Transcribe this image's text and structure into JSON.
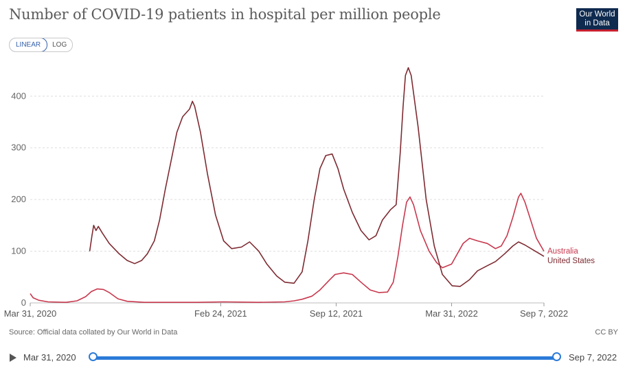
{
  "header": {
    "title": "Number of COVID-19 patients in hospital per million people",
    "logo_line1": "Our World",
    "logo_line2": "in Data",
    "logo_bg": "#0e2a4f",
    "logo_accent": "#c8202f"
  },
  "scale_toggle": {
    "linear_label": "LINEAR",
    "log_label": "LOG",
    "selected": "LINEAR"
  },
  "footer": {
    "source": "Source: Official data collated by Our World in Data",
    "license": "CC BY"
  },
  "timeline": {
    "start_label": "Mar 31, 2020",
    "end_label": "Sep 7, 2022",
    "play_icon": "play-icon",
    "accent": "#2b7bd8"
  },
  "chart_data": {
    "type": "line",
    "title": "Number of COVID-19 patients in hospital per million people",
    "x_type": "date",
    "xlim": [
      "2020-03-31",
      "2022-09-07"
    ],
    "ylim": [
      0,
      460
    ],
    "y_ticks": [
      0,
      100,
      200,
      300,
      400
    ],
    "x_ticks": [
      {
        "date": "2020-03-31",
        "label": "Mar 31, 2020"
      },
      {
        "date": "2021-02-24",
        "label": "Feb 24, 2021"
      },
      {
        "date": "2021-09-12",
        "label": "Sep 12, 2021"
      },
      {
        "date": "2022-03-31",
        "label": "Mar 31, 2022"
      },
      {
        "date": "2022-09-07",
        "label": "Sep 7, 2022"
      }
    ],
    "grid": "horizontal-dashed",
    "legend": "right-end-labels",
    "series": [
      {
        "name": "Australia",
        "color": "#c8374d",
        "points": [
          [
            "2020-03-31",
            18
          ],
          [
            "2020-04-05",
            10
          ],
          [
            "2020-04-15",
            5
          ],
          [
            "2020-05-01",
            2
          ],
          [
            "2020-06-01",
            1
          ],
          [
            "2020-06-20",
            4
          ],
          [
            "2020-07-05",
            12
          ],
          [
            "2020-07-15",
            22
          ],
          [
            "2020-07-25",
            27
          ],
          [
            "2020-08-05",
            26
          ],
          [
            "2020-08-15",
            20
          ],
          [
            "2020-08-30",
            8
          ],
          [
            "2020-09-15",
            3
          ],
          [
            "2020-10-15",
            1
          ],
          [
            "2021-01-15",
            1
          ],
          [
            "2021-03-01",
            2
          ],
          [
            "2021-05-01",
            1
          ],
          [
            "2021-06-15",
            2
          ],
          [
            "2021-07-01",
            4
          ],
          [
            "2021-07-15",
            7
          ],
          [
            "2021-08-01",
            13
          ],
          [
            "2021-08-15",
            25
          ],
          [
            "2021-09-01",
            45
          ],
          [
            "2021-09-10",
            55
          ],
          [
            "2021-09-25",
            58
          ],
          [
            "2021-10-10",
            55
          ],
          [
            "2021-10-25",
            40
          ],
          [
            "2021-11-10",
            25
          ],
          [
            "2021-11-25",
            20
          ],
          [
            "2021-12-10",
            21
          ],
          [
            "2021-12-20",
            40
          ],
          [
            "2021-12-28",
            90
          ],
          [
            "2022-01-05",
            150
          ],
          [
            "2022-01-12",
            195
          ],
          [
            "2022-01-18",
            205
          ],
          [
            "2022-01-24",
            190
          ],
          [
            "2022-02-05",
            140
          ],
          [
            "2022-02-20",
            100
          ],
          [
            "2022-03-05",
            78
          ],
          [
            "2022-03-15",
            68
          ],
          [
            "2022-03-31",
            75
          ],
          [
            "2022-04-10",
            95
          ],
          [
            "2022-04-20",
            115
          ],
          [
            "2022-05-01",
            125
          ],
          [
            "2022-05-15",
            120
          ],
          [
            "2022-06-01",
            115
          ],
          [
            "2022-06-15",
            105
          ],
          [
            "2022-06-25",
            110
          ],
          [
            "2022-07-05",
            130
          ],
          [
            "2022-07-15",
            165
          ],
          [
            "2022-07-25",
            205
          ],
          [
            "2022-07-29",
            212
          ],
          [
            "2022-08-05",
            195
          ],
          [
            "2022-08-15",
            160
          ],
          [
            "2022-08-25",
            125
          ],
          [
            "2022-09-07",
            100
          ]
        ]
      },
      {
        "name": "United States",
        "color": "#7d2a31",
        "points": [
          [
            "2020-07-12",
            100
          ],
          [
            "2020-07-16",
            130
          ],
          [
            "2020-07-19",
            150
          ],
          [
            "2020-07-23",
            140
          ],
          [
            "2020-07-27",
            148
          ],
          [
            "2020-08-03",
            135
          ],
          [
            "2020-08-15",
            115
          ],
          [
            "2020-09-01",
            95
          ],
          [
            "2020-09-15",
            82
          ],
          [
            "2020-09-28",
            76
          ],
          [
            "2020-10-10",
            82
          ],
          [
            "2020-10-20",
            95
          ],
          [
            "2020-11-01",
            120
          ],
          [
            "2020-11-10",
            160
          ],
          [
            "2020-11-20",
            220
          ],
          [
            "2020-12-01",
            280
          ],
          [
            "2020-12-10",
            330
          ],
          [
            "2020-12-20",
            360
          ],
          [
            "2021-01-01",
            375
          ],
          [
            "2021-01-06",
            390
          ],
          [
            "2021-01-10",
            380
          ],
          [
            "2021-01-20",
            330
          ],
          [
            "2021-02-01",
            250
          ],
          [
            "2021-02-15",
            170
          ],
          [
            "2021-03-01",
            120
          ],
          [
            "2021-03-15",
            105
          ],
          [
            "2021-04-01",
            108
          ],
          [
            "2021-04-15",
            118
          ],
          [
            "2021-05-01",
            100
          ],
          [
            "2021-05-15",
            75
          ],
          [
            "2021-06-01",
            52
          ],
          [
            "2021-06-15",
            40
          ],
          [
            "2021-07-01",
            38
          ],
          [
            "2021-07-15",
            60
          ],
          [
            "2021-07-25",
            120
          ],
          [
            "2021-08-05",
            200
          ],
          [
            "2021-08-15",
            260
          ],
          [
            "2021-08-25",
            285
          ],
          [
            "2021-09-05",
            288
          ],
          [
            "2021-09-15",
            260
          ],
          [
            "2021-09-25",
            220
          ],
          [
            "2021-10-10",
            175
          ],
          [
            "2021-10-25",
            140
          ],
          [
            "2021-11-08",
            122
          ],
          [
            "2021-11-20",
            130
          ],
          [
            "2021-12-01",
            160
          ],
          [
            "2021-12-15",
            180
          ],
          [
            "2021-12-25",
            190
          ],
          [
            "2022-01-01",
            290
          ],
          [
            "2022-01-06",
            380
          ],
          [
            "2022-01-10",
            440
          ],
          [
            "2022-01-15",
            455
          ],
          [
            "2022-01-20",
            440
          ],
          [
            "2022-02-01",
            340
          ],
          [
            "2022-02-15",
            200
          ],
          [
            "2022-03-01",
            110
          ],
          [
            "2022-03-15",
            55
          ],
          [
            "2022-04-01",
            33
          ],
          [
            "2022-04-15",
            32
          ],
          [
            "2022-05-01",
            45
          ],
          [
            "2022-05-15",
            62
          ],
          [
            "2022-06-01",
            72
          ],
          [
            "2022-06-15",
            80
          ],
          [
            "2022-07-01",
            95
          ],
          [
            "2022-07-15",
            110
          ],
          [
            "2022-07-25",
            118
          ],
          [
            "2022-08-05",
            112
          ],
          [
            "2022-08-20",
            102
          ],
          [
            "2022-09-07",
            90
          ]
        ]
      }
    ]
  }
}
